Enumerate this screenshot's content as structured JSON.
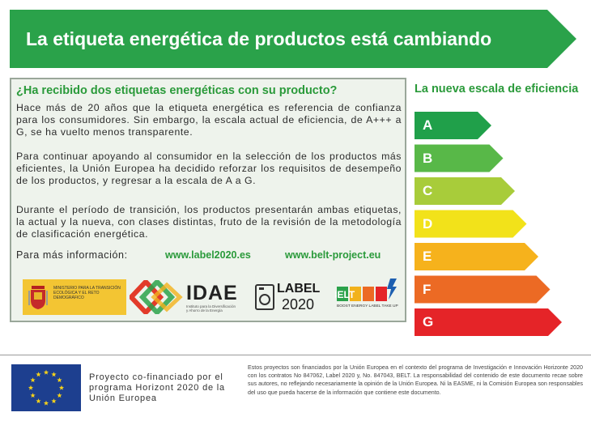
{
  "banner": {
    "title": "La etiqueta energética de productos está cambiando",
    "color": "#2aa24a"
  },
  "info": {
    "heading": "¿Ha recibido dos etiquetas energéticas con su producto?",
    "paragraph1": "Hace más de 20 años que la etiqueta energética es referencia de confianza para los consumidores. Sin embargo, la escala actual de eficiencia, de A+++ a G, se ha vuelto menos transparente.",
    "paragraph2": "Para continuar apoyando al consumidor en la selección de los productos más eficientes, la Unión Europea ha decidido reforzar los requisitos de desempeño de los productos, y regresar a la escala de A a G.",
    "paragraph3": "Durante el período de transición, los productos presentarán ambas etiquetas, la actual y la nueva, con clases distintas, fruto de la revisión de la metodología de clasificación energética.",
    "more_label": "Para más información:",
    "link1": "www.label2020.es",
    "link2": "www.belt-project.eu"
  },
  "logos": {
    "ministerio_text": "MINISTERIO PARA LA TRANSICIÓN ECOLÓGICA Y EL RETO DEMOGRÁFICO",
    "idae_word": "IDAE",
    "idae_sub": "Instituto para la Diversificación y Ahorro de la Energía",
    "label_line1": "LABEL",
    "label_line2": "2020",
    "belt_word": "BELT",
    "belt_sub": "BOOST ENERGY LABEL TAKE UP"
  },
  "scale": {
    "title": "La nueva escala de eficiencia",
    "grades": [
      {
        "letter": "A",
        "color": "#20a04a"
      },
      {
        "letter": "B",
        "color": "#58b848"
      },
      {
        "letter": "C",
        "color": "#a8cc3a"
      },
      {
        "letter": "D",
        "color": "#f2e21a"
      },
      {
        "letter": "E",
        "color": "#f6b21c"
      },
      {
        "letter": "F",
        "color": "#ec6a24"
      },
      {
        "letter": "G",
        "color": "#e52428"
      }
    ]
  },
  "footer": {
    "eu_text": "Proyecto co-financiado por el programa Horizont 2020 de la Unión Europea",
    "disclaimer": "Estos proyectos son financiados por la Unión Europea en el contexto del programa de Investigación e Innovación Horizonte 2020 con los contratos No 847062, Label 2020 y, No. 847043, BELT. La responsabilidad del contenido de este documento recae sobre sus autores, no reflejando necesariamente la opinión de la Unión Europea. Ni la EASME, ni la Comisión Europea son responsables del uso que pueda hacerse de la información que contiene este documento."
  }
}
